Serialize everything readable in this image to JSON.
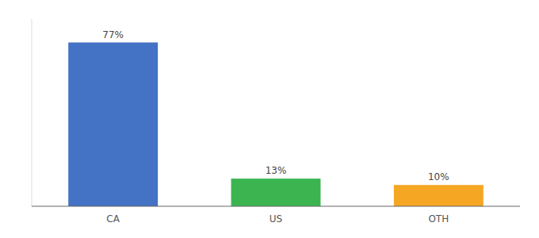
{
  "chart_data": {
    "type": "bar",
    "categories": [
      "CA",
      "US",
      "OTH"
    ],
    "values": [
      77,
      13,
      10
    ],
    "value_labels": [
      "77%",
      "13%",
      "10%"
    ],
    "colors": [
      "#4472C4",
      "#3CB550",
      "#F5A623"
    ],
    "ylim": [
      0,
      88
    ],
    "data_labels": true,
    "tick_labels": "x"
  }
}
